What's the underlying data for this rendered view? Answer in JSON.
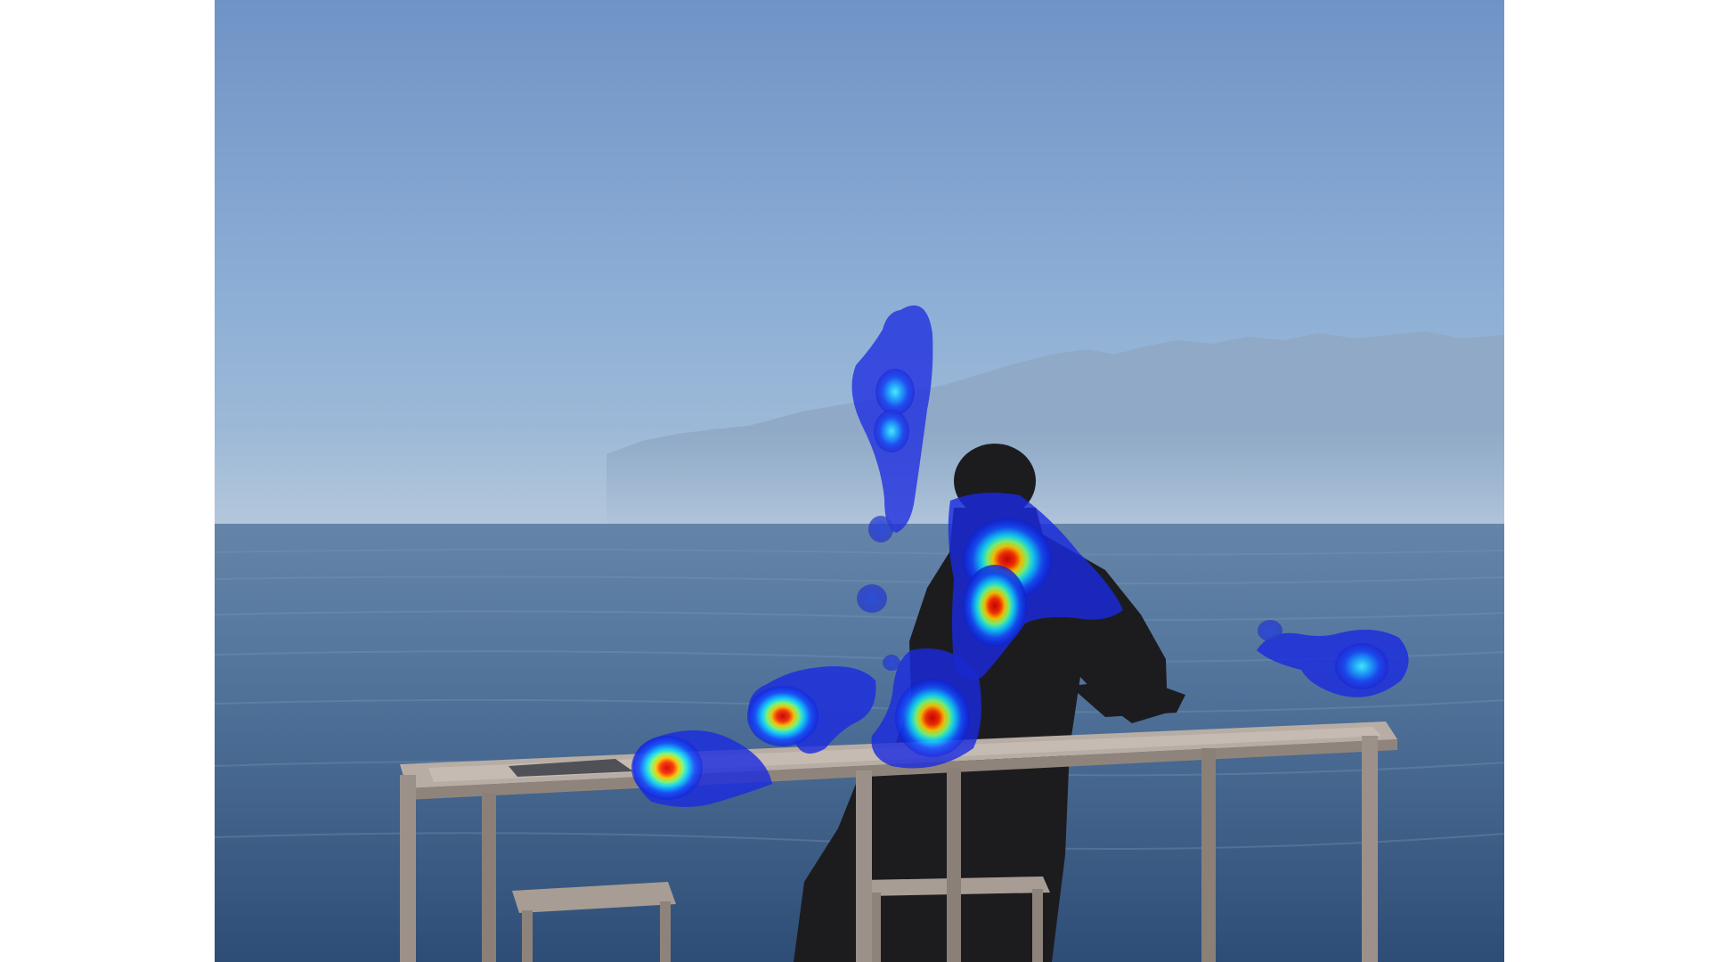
{
  "image": {
    "scene": "photograph",
    "colors": {
      "background": "#ffffff",
      "sky_top": "#6f93c6",
      "sky_horizon": "#a3bdd6",
      "mountains": "#8ea9c6",
      "sea_top": "#5b7fa6",
      "sea_bottom": "#2f4f78",
      "furniture": "#a2948a",
      "silhouette": "#1d1d1f"
    }
  },
  "heatmap": {
    "colormap": "jet",
    "hotspots": [
      {
        "id": "head-neck",
        "peak": 1.0,
        "peak_color": "#e01010"
      },
      {
        "id": "sky-above",
        "peak": 0.55,
        "peak_color": "#33e0ff"
      },
      {
        "id": "table-center",
        "peak": 0.92,
        "peak_color": "#e82010"
      },
      {
        "id": "table-left-mid",
        "peak": 0.88,
        "peak_color": "#ee2a10"
      },
      {
        "id": "table-left-end",
        "peak": 0.85,
        "peak_color": "#ee3010"
      },
      {
        "id": "sea-right",
        "peak": 0.5,
        "peak_color": "#33e0ff"
      },
      {
        "id": "small-sea-dot-1",
        "peak": 0.2,
        "peak_color": "#2a4ad8"
      },
      {
        "id": "small-sea-dot-2",
        "peak": 0.2,
        "peak_color": "#2a4ad8"
      },
      {
        "id": "small-horizon-dot",
        "peak": 0.2,
        "peak_color": "#2a4ad8"
      }
    ]
  }
}
